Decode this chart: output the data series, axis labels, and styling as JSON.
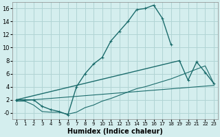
{
  "xlabel": "Humidex (Indice chaleur)",
  "background_color": "#d4eeee",
  "grid_color": "#b0d4d4",
  "line_color": "#1a6b6b",
  "x_values": [
    0,
    1,
    2,
    3,
    4,
    5,
    6,
    7,
    8,
    9,
    10,
    11,
    12,
    13,
    14,
    15,
    16,
    17,
    18,
    19,
    20,
    21,
    22,
    23
  ],
  "line1": [
    2.0,
    2.0,
    2.0,
    1.0,
    0.5,
    0.2,
    -0.3,
    4.0,
    6.0,
    7.5,
    8.5,
    11.0,
    12.5,
    14.0,
    15.8,
    16.0,
    16.5,
    14.5,
    10.5,
    null,
    null,
    null,
    null,
    null
  ],
  "line2_x": [
    0,
    19,
    20,
    21,
    22,
    23
  ],
  "line2_y": [
    2.0,
    8.0,
    5.0,
    7.8,
    6.2,
    4.5
  ],
  "line3_x": [
    0,
    23
  ],
  "line3_y": [
    1.8,
    4.2
  ],
  "line4": [
    1.8,
    1.8,
    1.2,
    0.2,
    0.1,
    0.1,
    -0.2,
    0.1,
    0.8,
    1.2,
    1.8,
    2.2,
    2.7,
    3.2,
    3.7,
    4.0,
    4.4,
    4.8,
    5.2,
    5.7,
    6.2,
    6.7,
    7.2,
    4.5
  ],
  "ylim": [
    -1.0,
    17.0
  ],
  "xlim": [
    -0.5,
    23.5
  ],
  "yticks": [
    0,
    2,
    4,
    6,
    8,
    10,
    12,
    14,
    16
  ],
  "ytick_labels": [
    "-0",
    "2",
    "4",
    "6",
    "8",
    "10",
    "12",
    "14",
    "16"
  ],
  "xtick_labels": [
    "0",
    "1",
    "2",
    "3",
    "4",
    "5",
    "6",
    "7",
    "8",
    "9",
    "10",
    "11",
    "12",
    "13",
    "14",
    "15",
    "16",
    "17",
    "18",
    "19",
    "20",
    "21",
    "22",
    "23"
  ]
}
